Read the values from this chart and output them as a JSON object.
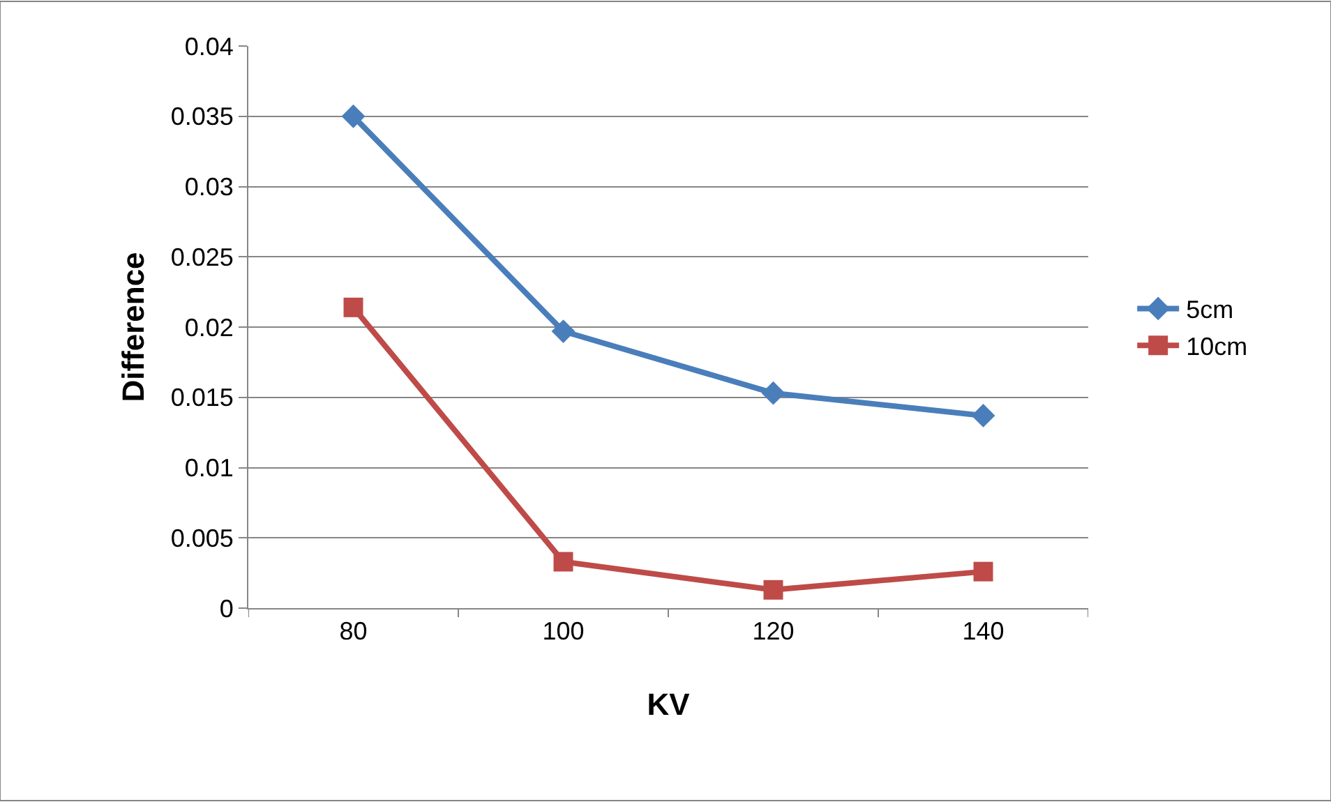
{
  "chart_data": {
    "type": "line",
    "xlabel": "KV",
    "ylabel": "Difference",
    "categories": [
      "80",
      "100",
      "120",
      "140"
    ],
    "series": [
      {
        "name": "5cm",
        "color": "#4a7ebb",
        "marker": "diamond",
        "values": [
          0.035,
          0.0197,
          0.0153,
          0.0137
        ]
      },
      {
        "name": "10cm",
        "color": "#be4b48",
        "marker": "square",
        "values": [
          0.0214,
          0.0033,
          0.0013,
          0.0026
        ]
      }
    ],
    "ylim": [
      0,
      0.04
    ],
    "yticks": [
      0,
      0.005,
      0.01,
      0.015,
      0.02,
      0.025,
      0.03,
      0.035,
      0.04
    ],
    "grid": "y",
    "legend": "right",
    "line_style": "solid"
  }
}
